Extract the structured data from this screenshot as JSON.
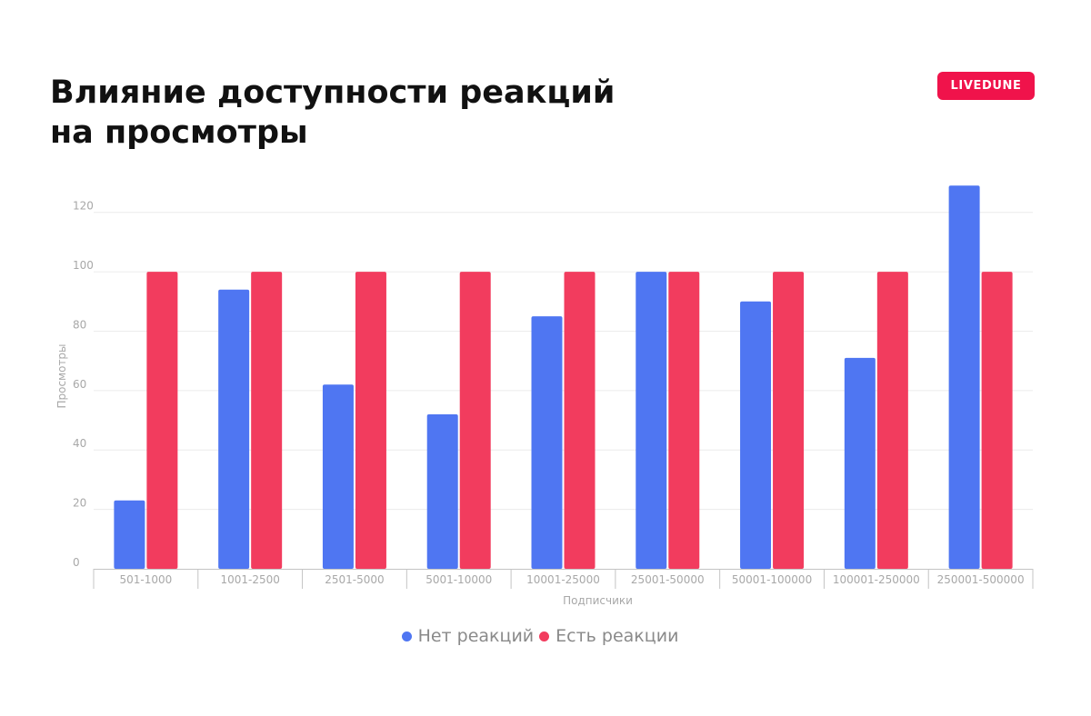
{
  "header": {
    "title_line1": "Влияние доступности реакций",
    "title_line2": "на просмотры",
    "brand": "LIVEDUNE"
  },
  "colors": {
    "series_no_reactions": "#4f76f2",
    "series_with_reactions": "#f23c5e",
    "brand": "#f0134b",
    "grid": "#ececec",
    "axis_text": "#a8a8a8"
  },
  "chart_data": {
    "type": "bar",
    "title": "Влияние доступности реакций на просмотры",
    "xlabel": "Подписчики",
    "ylabel": "Просмотры",
    "ylim": [
      0,
      130
    ],
    "yticks": [
      0,
      20,
      40,
      60,
      80,
      100,
      120
    ],
    "grid": true,
    "legend_position": "bottom-center",
    "categories": [
      "501-1000",
      "1001-2500",
      "2501-5000",
      "5001-10000",
      "10001-25000",
      "25001-50000",
      "50001-100000",
      "100001-250000",
      "250001-500000"
    ],
    "series": [
      {
        "name": "Нет реакций",
        "values": [
          23,
          94,
          62,
          52,
          85,
          100,
          90,
          71,
          129
        ]
      },
      {
        "name": "Есть реакции",
        "values": [
          100,
          100,
          100,
          100,
          100,
          100,
          100,
          100,
          100
        ]
      }
    ]
  }
}
